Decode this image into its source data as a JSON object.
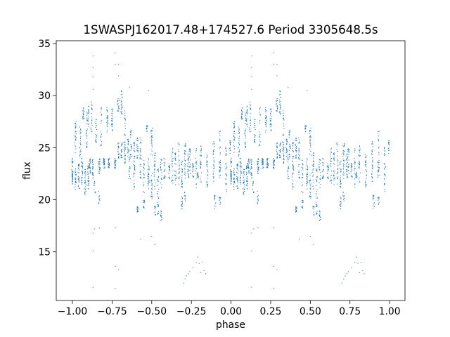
{
  "chart_data": {
    "type": "scatter",
    "title": "1SWASPJ162017.48+174527.6 Period 3305648.5s",
    "xlabel": "phase",
    "ylabel": "flux",
    "xlim": [
      -1.102,
      1.097
    ],
    "ylim": [
      10.33,
      35.27
    ],
    "xticks": [
      -1.0,
      -0.75,
      -0.5,
      -0.25,
      0.0,
      0.25,
      0.5,
      0.75,
      1.0
    ],
    "xtick_labels": [
      "−1.00",
      "−0.75",
      "−0.50",
      "−0.25",
      "0.00",
      "0.25",
      "0.50",
      "0.75",
      "1.00"
    ],
    "yticks": [
      15,
      20,
      25,
      30,
      35
    ],
    "ytick_labels": [
      "15",
      "20",
      "25",
      "30",
      "35"
    ],
    "grid": false,
    "legend": "none",
    "marker_color": "#1f77b4",
    "phase_folded": true,
    "note_fold": "points listed for phase 0..1 are drawn at phase and phase-1",
    "streaks_columns": [
      "phase",
      "flux_min",
      "flux_max",
      "count"
    ],
    "streaks": [
      [
        0.0,
        21.5,
        24.0,
        40
      ],
      [
        0.02,
        24.5,
        27.5,
        30
      ],
      [
        0.02,
        21.0,
        23.0,
        25
      ],
      [
        0.04,
        21.0,
        23.5,
        30
      ],
      [
        0.05,
        24.0,
        27.0,
        25
      ],
      [
        0.06,
        21.5,
        24.0,
        30
      ],
      [
        0.07,
        27.7,
        28.9,
        20
      ],
      [
        0.08,
        20.5,
        23.0,
        30
      ],
      [
        0.09,
        25.0,
        28.5,
        25
      ],
      [
        0.1,
        21.0,
        23.5,
        30
      ],
      [
        0.1,
        27.0,
        29.0,
        20
      ],
      [
        0.11,
        22.5,
        24.0,
        25
      ],
      [
        0.12,
        26.5,
        29.5,
        20
      ],
      [
        0.13,
        22.0,
        24.0,
        25
      ],
      [
        0.14,
        20.5,
        22.0,
        10
      ],
      [
        0.15,
        25.5,
        28.0,
        20
      ],
      [
        0.17,
        22.5,
        24.0,
        30
      ],
      [
        0.17,
        19.5,
        21.0,
        10
      ],
      [
        0.18,
        25.0,
        29.0,
        20
      ],
      [
        0.2,
        23.0,
        24.0,
        30
      ],
      [
        0.22,
        26.5,
        29.0,
        25
      ],
      [
        0.23,
        23.0,
        24.0,
        25
      ],
      [
        0.25,
        26.5,
        29.0,
        25
      ],
      [
        0.27,
        23.0,
        24.0,
        20
      ],
      [
        0.29,
        24.0,
        25.5,
        20
      ],
      [
        0.29,
        28.5,
        29.8,
        20
      ],
      [
        0.31,
        24.0,
        25.5,
        20
      ],
      [
        0.31,
        28.0,
        30.5,
        25
      ],
      [
        0.33,
        23.5,
        25.5,
        20
      ],
      [
        0.33,
        24.0,
        29.0,
        20
      ],
      [
        0.35,
        24.0,
        26.0,
        20
      ],
      [
        0.36,
        22.0,
        25.0,
        20
      ],
      [
        0.37,
        24.0,
        27.0,
        25
      ],
      [
        0.39,
        23.0,
        25.5,
        25
      ],
      [
        0.39,
        21.0,
        23.0,
        15
      ],
      [
        0.41,
        24.0,
        26.0,
        25
      ],
      [
        0.41,
        18.8,
        19.4,
        15
      ],
      [
        0.43,
        22.0,
        26.0,
        30
      ],
      [
        0.45,
        19.0,
        20.0,
        12
      ],
      [
        0.45,
        20.5,
        24.0,
        20
      ],
      [
        0.47,
        26.5,
        27.2,
        15
      ],
      [
        0.48,
        21.0,
        24.0,
        30
      ],
      [
        0.5,
        24.0,
        27.0,
        25
      ],
      [
        0.5,
        20.0,
        23.0,
        25
      ],
      [
        0.52,
        18.5,
        19.5,
        12
      ],
      [
        0.52,
        21.0,
        24.5,
        25
      ],
      [
        0.54,
        19.5,
        23.0,
        25
      ],
      [
        0.54,
        18.5,
        19.5,
        10
      ],
      [
        0.56,
        21.0,
        24.0,
        20
      ],
      [
        0.56,
        18.0,
        19.0,
        15
      ],
      [
        0.58,
        22.0,
        24.0,
        20
      ],
      [
        0.61,
        22.0,
        23.5,
        20
      ],
      [
        0.63,
        21.5,
        24.0,
        15
      ],
      [
        0.63,
        23.0,
        25.0,
        10
      ],
      [
        0.65,
        21.0,
        24.5,
        25
      ],
      [
        0.67,
        21.5,
        26.0,
        25
      ],
      [
        0.69,
        21.0,
        24.0,
        25
      ],
      [
        0.69,
        19.0,
        20.3,
        15
      ],
      [
        0.71,
        22.0,
        25.5,
        30
      ],
      [
        0.71,
        19.0,
        21.0,
        10
      ],
      [
        0.73,
        22.0,
        24.5,
        25
      ],
      [
        0.74,
        22.5,
        25.0,
        25
      ],
      [
        0.76,
        22.0,
        23.5,
        20
      ],
      [
        0.78,
        21.0,
        25.0,
        20
      ],
      [
        0.79,
        22.1,
        22.8,
        15
      ],
      [
        0.81,
        21.7,
        25.2,
        30
      ],
      [
        0.85,
        21.2,
        24.4,
        30
      ],
      [
        0.89,
        21.7,
        25.7,
        30
      ],
      [
        0.9,
        19.0,
        20.5,
        15
      ],
      [
        0.93,
        22.1,
        26.6,
        30
      ],
      [
        0.93,
        19.5,
        20.3,
        10
      ],
      [
        0.97,
        20.8,
        25.2,
        30
      ],
      [
        0.995,
        24.4,
        25.7,
        15
      ]
    ],
    "outliers": [
      [
        0.13,
        33.8
      ],
      [
        0.13,
        32.7
      ],
      [
        0.13,
        31.8
      ],
      [
        0.13,
        30.6
      ],
      [
        0.13,
        15.1
      ],
      [
        0.13,
        11.6
      ],
      [
        0.13,
        16.8
      ],
      [
        0.14,
        17.2
      ],
      [
        0.17,
        17.3
      ],
      [
        0.27,
        34.1
      ],
      [
        0.27,
        33.0
      ],
      [
        0.29,
        33.0
      ],
      [
        0.29,
        31.9
      ],
      [
        0.27,
        13.6
      ],
      [
        0.29,
        13.3
      ],
      [
        0.27,
        11.5
      ],
      [
        0.27,
        17.3
      ],
      [
        0.36,
        30.8
      ],
      [
        0.48,
        30.5
      ],
      [
        0.43,
        16.2
      ],
      [
        0.5,
        16.5
      ],
      [
        0.52,
        15.7
      ],
      [
        0.7,
        12.0
      ],
      [
        0.71,
        12.4
      ],
      [
        0.72,
        12.7
      ],
      [
        0.73,
        12.9
      ],
      [
        0.74,
        13.1
      ],
      [
        0.76,
        13.5
      ],
      [
        0.78,
        14.0
      ],
      [
        0.79,
        14.5
      ],
      [
        0.8,
        13.9
      ],
      [
        0.81,
        13.0
      ],
      [
        0.82,
        14.0
      ],
      [
        0.83,
        13.2
      ],
      [
        0.84,
        12.9
      ]
    ]
  }
}
